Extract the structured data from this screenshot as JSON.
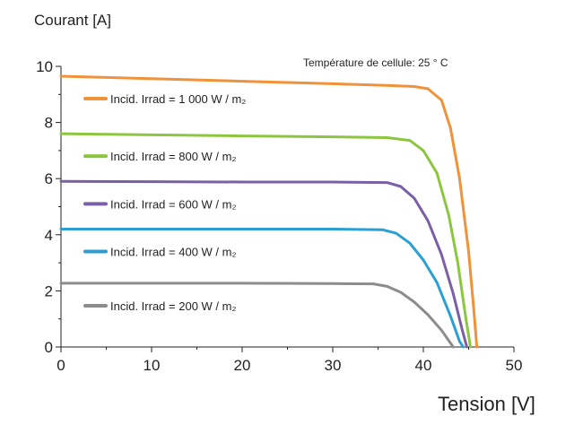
{
  "chart_data": {
    "type": "line",
    "ylabel": "Courant [A]",
    "xlabel": "Tension [V]",
    "annotation": "Température de cellule: 25 ° C",
    "xlim": [
      0,
      50
    ],
    "ylim": [
      0,
      10
    ],
    "xticks": [
      0,
      10,
      20,
      30,
      40,
      50
    ],
    "yticks": [
      0,
      2,
      4,
      6,
      8,
      10
    ],
    "grid": false,
    "legend_placement": "left",
    "series": [
      {
        "name": "Incid. Irrad = 1 000 W / m₂",
        "color": "#f0923a",
        "points": [
          [
            0,
            9.65
          ],
          [
            10,
            9.56
          ],
          [
            20,
            9.47
          ],
          [
            30,
            9.38
          ],
          [
            36,
            9.32
          ],
          [
            39,
            9.28
          ],
          [
            40.5,
            9.2
          ],
          [
            42,
            8.8
          ],
          [
            43,
            7.8
          ],
          [
            44,
            6.0
          ],
          [
            45,
            3.4
          ],
          [
            45.6,
            1.2
          ],
          [
            45.9,
            0
          ]
        ]
      },
      {
        "name": "Incid. Irrad = 800 W / m₂",
        "color": "#8cc63f",
        "points": [
          [
            0,
            7.6
          ],
          [
            10,
            7.56
          ],
          [
            20,
            7.52
          ],
          [
            30,
            7.49
          ],
          [
            36,
            7.46
          ],
          [
            38.5,
            7.36
          ],
          [
            40,
            7.0
          ],
          [
            41.5,
            6.2
          ],
          [
            42.8,
            4.7
          ],
          [
            43.8,
            3.0
          ],
          [
            44.7,
            1.0
          ],
          [
            45.2,
            0
          ]
        ]
      },
      {
        "name": "Incid. Irrad = 600 W / m₂",
        "color": "#7b5fa6",
        "points": [
          [
            0,
            5.9
          ],
          [
            10,
            5.89
          ],
          [
            20,
            5.88
          ],
          [
            30,
            5.88
          ],
          [
            36,
            5.86
          ],
          [
            37.5,
            5.72
          ],
          [
            39,
            5.3
          ],
          [
            40.5,
            4.5
          ],
          [
            42,
            3.3
          ],
          [
            43.3,
            1.9
          ],
          [
            44.3,
            0.6
          ],
          [
            44.8,
            0
          ]
        ]
      },
      {
        "name": "Incid. Irrad = 400 W / m₂",
        "color": "#2b9fd4",
        "points": [
          [
            0,
            4.2
          ],
          [
            10,
            4.2
          ],
          [
            20,
            4.2
          ],
          [
            30,
            4.2
          ],
          [
            35.5,
            4.18
          ],
          [
            37,
            4.05
          ],
          [
            38.5,
            3.7
          ],
          [
            40,
            3.1
          ],
          [
            41.5,
            2.3
          ],
          [
            43,
            1.1
          ],
          [
            44,
            0.2
          ],
          [
            44.4,
            0
          ]
        ]
      },
      {
        "name": "Incid. Irrad = 200 W / m₂",
        "color": "#8c8c8c",
        "points": [
          [
            0,
            2.27
          ],
          [
            10,
            2.27
          ],
          [
            20,
            2.27
          ],
          [
            30,
            2.26
          ],
          [
            34.5,
            2.25
          ],
          [
            36,
            2.16
          ],
          [
            37.5,
            1.95
          ],
          [
            39,
            1.6
          ],
          [
            40.5,
            1.15
          ],
          [
            42,
            0.6
          ],
          [
            43.3,
            0
          ]
        ]
      }
    ]
  }
}
